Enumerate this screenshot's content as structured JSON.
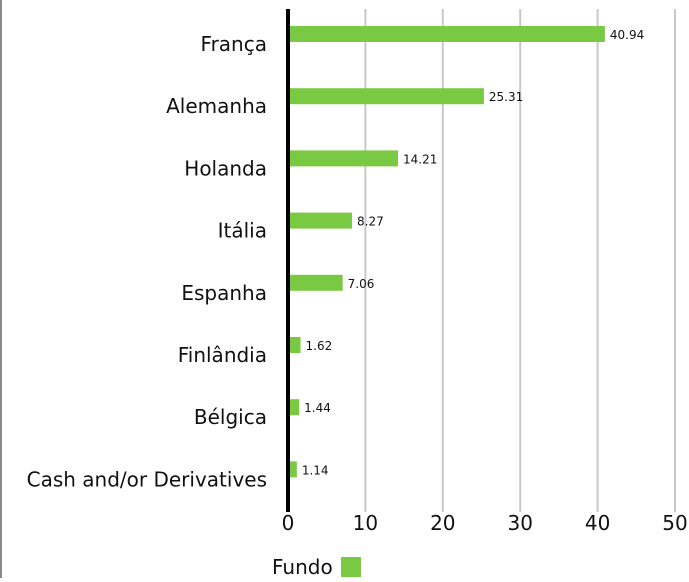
{
  "chart_data": {
    "type": "bar",
    "orientation": "horizontal",
    "categories": [
      "França",
      "Alemanha",
      "Holanda",
      "Itália",
      "Espanha",
      "Finlândia",
      "Bélgica",
      "Cash and/or Derivatives"
    ],
    "series": [
      {
        "name": "Fundo",
        "values": [
          40.94,
          25.31,
          14.21,
          8.27,
          7.06,
          1.62,
          1.44,
          1.14
        ]
      }
    ],
    "data_labels": [
      "40.94",
      "25.31",
      "14.21",
      "8.27",
      "7.06",
      "1.62",
      "1.44",
      "1.14"
    ],
    "xlim": [
      0,
      50
    ],
    "xticks": [
      "0",
      "10",
      "20",
      "30",
      "40",
      "50"
    ],
    "grid": "vertical",
    "legend_position": "bottom-center",
    "colors": {
      "bar": "#7ac943",
      "grid": "#c8c8c8",
      "axis": "#000000",
      "text": "#111111"
    }
  }
}
